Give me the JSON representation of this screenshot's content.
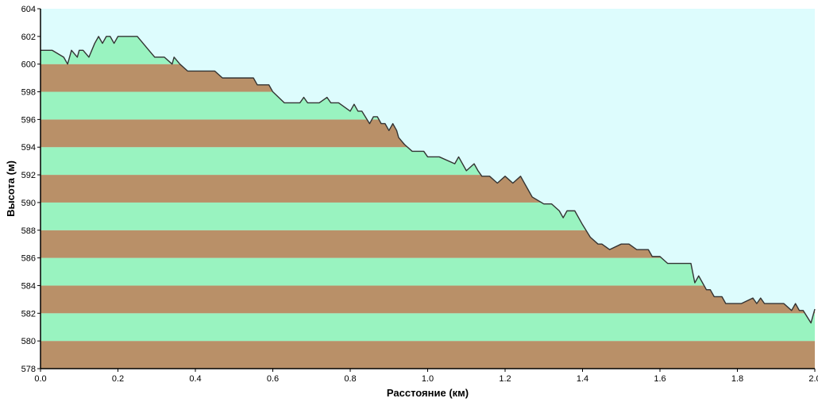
{
  "chart_data": {
    "type": "area",
    "title": "",
    "xlabel": "Расстояние  (км)",
    "ylabel": "Высота (м)",
    "xlim": [
      0.0,
      2.0
    ],
    "ylim": [
      578,
      604
    ],
    "xticks": [
      "0.0",
      "0.2",
      "0.4",
      "0.6",
      "0.8",
      "1.0",
      "1.2",
      "1.4",
      "1.6",
      "1.8",
      "2.0"
    ],
    "yticks": [
      "578",
      "580",
      "582",
      "584",
      "586",
      "588",
      "590",
      "592",
      "594",
      "596",
      "598",
      "600",
      "602",
      "604"
    ],
    "grid": false,
    "legend": "none",
    "colors": {
      "sky": "#ddfcfd",
      "band_light": "#99f3c0",
      "band_dark": "#b99068",
      "profile_line": "#333333",
      "axis": "#000000"
    },
    "series": [
      {
        "x": [
          0.0,
          0.03,
          0.06,
          0.07,
          0.08,
          0.095,
          0.1,
          0.11,
          0.125,
          0.14,
          0.15,
          0.16,
          0.17,
          0.18,
          0.19,
          0.2,
          0.21,
          0.225,
          0.23,
          0.25,
          0.28,
          0.295,
          0.32,
          0.34,
          0.345,
          0.36,
          0.38,
          0.39,
          0.4,
          0.45,
          0.47,
          0.48,
          0.55,
          0.56,
          0.59,
          0.6,
          0.63,
          0.66,
          0.67,
          0.68,
          0.69,
          0.72,
          0.74,
          0.75,
          0.77,
          0.8,
          0.81,
          0.82,
          0.83,
          0.85,
          0.86,
          0.87,
          0.88,
          0.89,
          0.9,
          0.91,
          0.92,
          0.925,
          0.94,
          0.96,
          0.99,
          1.0,
          1.01,
          1.03,
          1.07,
          1.08,
          1.1,
          1.12,
          1.13,
          1.14,
          1.155,
          1.16,
          1.18,
          1.2,
          1.22,
          1.24,
          1.25,
          1.26,
          1.27,
          1.3,
          1.32,
          1.34,
          1.35,
          1.36,
          1.37,
          1.38,
          1.4,
          1.42,
          1.44,
          1.45,
          1.47,
          1.5,
          1.52,
          1.54,
          1.57,
          1.58,
          1.6,
          1.62,
          1.65,
          1.68,
          1.69,
          1.7,
          1.71,
          1.72,
          1.73,
          1.74,
          1.76,
          1.77,
          1.78,
          1.8,
          1.81,
          1.84,
          1.85,
          1.86,
          1.87,
          1.88,
          1.92,
          1.94,
          1.95,
          1.96,
          1.97,
          1.99,
          2.0
        ],
        "y": [
          601,
          601,
          600.5,
          600,
          601,
          600.5,
          601,
          601,
          600.5,
          601.5,
          602,
          601.5,
          602,
          602,
          601.5,
          602,
          602,
          602,
          602,
          602,
          601,
          600.5,
          600.5,
          600,
          600.5,
          600,
          599.5,
          599.5,
          599.5,
          599.5,
          599,
          599,
          599,
          598.5,
          598.5,
          598,
          597.2,
          597.2,
          597.2,
          597.6,
          597.2,
          597.2,
          597.6,
          597.2,
          597.2,
          596.6,
          597.1,
          596.6,
          596.6,
          595.7,
          596.2,
          596.2,
          595.7,
          595.7,
          595.2,
          595.7,
          595.2,
          594.7,
          594.2,
          593.7,
          593.7,
          593.3,
          593.3,
          593.3,
          592.8,
          593.3,
          592.3,
          592.8,
          592.3,
          591.9,
          591.9,
          591.9,
          591.4,
          591.9,
          591.4,
          591.9,
          591.4,
          590.9,
          590.4,
          589.9,
          589.9,
          589.4,
          588.9,
          589.4,
          589.4,
          589.4,
          588.4,
          587.5,
          587.0,
          587.0,
          586.6,
          587.0,
          587.0,
          586.6,
          586.6,
          586.1,
          586.1,
          585.6,
          585.6,
          585.6,
          584.2,
          584.7,
          584.2,
          583.7,
          583.7,
          583.2,
          583.2,
          582.7,
          582.7,
          582.7,
          582.7,
          583.1,
          582.7,
          583.1,
          582.7,
          582.7,
          582.7,
          582.2,
          582.7,
          582.2,
          582.2,
          581.3,
          582.3
        ]
      }
    ]
  }
}
